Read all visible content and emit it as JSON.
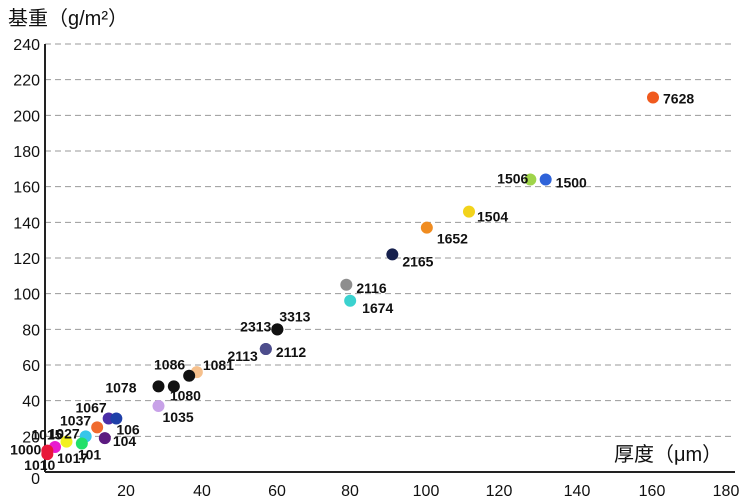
{
  "chart_data": {
    "type": "scatter",
    "ylabel": "基重（g/m²）",
    "xlabel": "厚度（μm）",
    "xlim": [
      0,
      180
    ],
    "ylim": [
      0,
      240
    ],
    "x_ticks": [
      "20",
      "40",
      "60",
      "80",
      "100",
      "120",
      "140",
      "160",
      "180"
    ],
    "y_ticks": [
      "0",
      "20",
      "40",
      "60",
      "80",
      "100",
      "120",
      "140",
      "160",
      "180",
      "200",
      "220",
      "240"
    ],
    "grid": "horizontal-dashed",
    "points": [
      {
        "label": "7628",
        "x": 168,
        "y": 210,
        "color": "#f05a1e"
      },
      {
        "label": "1506",
        "x": 136,
        "y": 164,
        "color": "#9fd44a"
      },
      {
        "label": "1500",
        "x": 140,
        "y": 164,
        "color": "#2f63d9"
      },
      {
        "label": "1504",
        "x": 120,
        "y": 146,
        "color": "#f2d31b"
      },
      {
        "label": "1652",
        "x": 109,
        "y": 137,
        "color": "#f08c20"
      },
      {
        "label": "2165",
        "x": 100,
        "y": 122,
        "color": "#16204d"
      },
      {
        "label": "2116",
        "x": 88,
        "y": 105,
        "color": "#8e8e8e"
      },
      {
        "label": "1674",
        "x": 89,
        "y": 96,
        "color": "#3bd2cf"
      },
      {
        "label": "3313",
        "x": 70,
        "y": 80,
        "color": "#111111"
      },
      {
        "label": "2313",
        "x": 70,
        "y": 80,
        "color": "#111111"
      },
      {
        "label": "2112",
        "x": 67,
        "y": 69,
        "color": "#4d4d8c"
      },
      {
        "label": "2113",
        "x": 67,
        "y": 69,
        "color": "#4d4d8c"
      },
      {
        "label": "1081",
        "x": 49,
        "y": 56,
        "color": "#f6c08c"
      },
      {
        "label": "1086",
        "x": 47,
        "y": 54,
        "color": "#111111"
      },
      {
        "label": "1080",
        "x": 43,
        "y": 48,
        "color": "#111111"
      },
      {
        "label": "1078",
        "x": 39,
        "y": 48,
        "color": "#111111"
      },
      {
        "label": "1035",
        "x": 39,
        "y": 37,
        "color": "#c8a2e8"
      },
      {
        "label": "1067",
        "x": 26,
        "y": 30,
        "color": "#4a2ea8"
      },
      {
        "label": "106",
        "x": 28,
        "y": 30,
        "color": "#1e3fa8"
      },
      {
        "label": "1037",
        "x": 23,
        "y": 25,
        "color": "#f06a2e"
      },
      {
        "label": "104",
        "x": 25,
        "y": 19,
        "color": "#5c1a80"
      },
      {
        "label": "1027",
        "x": 20,
        "y": 20,
        "color": "#37c6ea"
      },
      {
        "label": "101",
        "x": 19,
        "y": 16,
        "color": "#22e06a"
      },
      {
        "label": "1015",
        "x": 15,
        "y": 17,
        "color": "#f2f020"
      },
      {
        "label": "1017",
        "x": 12,
        "y": 14,
        "color": "#e81ccf"
      },
      {
        "label": "1000",
        "x": 10,
        "y": 12,
        "color": "#e8183a"
      },
      {
        "label": "1010",
        "x": 10,
        "y": 10,
        "color": "#e8183a"
      }
    ]
  }
}
